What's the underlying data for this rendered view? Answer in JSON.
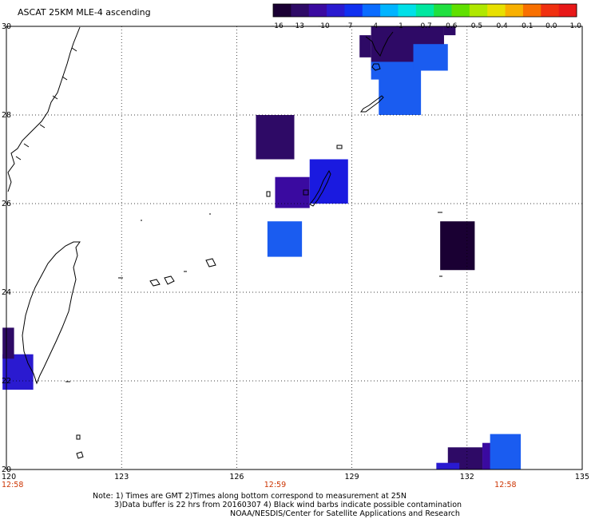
{
  "title": "ASCAT 25KM MLE-4 ascending",
  "colorbar": {
    "labels": [
      "-16",
      "-13",
      "-10",
      "-7",
      "-4",
      "-1",
      "-0.7",
      "-0.6",
      "-0.5",
      "-0.4",
      "-0.1",
      "0.0",
      "1.0"
    ],
    "colors": [
      "#1a0033",
      "#2e0a66",
      "#3a0aa0",
      "#2a1ad0",
      "#1030f0",
      "#0a6cff",
      "#00b4ff",
      "#00e0e8",
      "#00e8a0",
      "#20e040",
      "#60e000",
      "#b0e800",
      "#e8e000",
      "#f8b000",
      "#f87000",
      "#f03010",
      "#e81818"
    ]
  },
  "axes": {
    "lon_labels": [
      "120",
      "123",
      "126",
      "129",
      "132",
      "135"
    ],
    "lat_labels": [
      "20",
      "22",
      "24",
      "26",
      "28",
      "30"
    ],
    "lon_range": [
      120,
      135
    ],
    "lat_range": [
      20,
      30
    ],
    "grid": "dotted"
  },
  "time_labels": [
    {
      "text": "12:58",
      "lon": 120
    },
    {
      "text": "12:59",
      "lon": 127
    },
    {
      "text": "12:58",
      "lon": 133
    }
  ],
  "swaths": [
    {
      "lon": [
        129.2,
        129.5
      ],
      "lat": [
        29.3,
        29.8
      ],
      "color": "#2e0a66"
    },
    {
      "lon": [
        129.5,
        131.4
      ],
      "lat": [
        29.0,
        30.0
      ],
      "color": "#2e0a66"
    },
    {
      "lon": [
        131.4,
        131.7
      ],
      "lat": [
        29.8,
        30.0
      ],
      "color": "#2e0a66"
    },
    {
      "lon": [
        130.6,
        131.5
      ],
      "lat": [
        29.0,
        29.6
      ],
      "color": "#1a5cf0"
    },
    {
      "lon": [
        129.5,
        130.6
      ],
      "lat": [
        28.8,
        29.2
      ],
      "color": "#1a5cf0"
    },
    {
      "lon": [
        129.7,
        130.8
      ],
      "lat": [
        28.0,
        29.0
      ],
      "color": "#1a5cf0"
    },
    {
      "lon": [
        126.5,
        127.5
      ],
      "lat": [
        27.0,
        28.0
      ],
      "color": "#2e0a66"
    },
    {
      "lon": [
        127.0,
        127.9
      ],
      "lat": [
        25.9,
        26.6
      ],
      "color": "#3a0aa0"
    },
    {
      "lon": [
        127.9,
        128.9
      ],
      "lat": [
        26.0,
        27.0
      ],
      "color": "#1a1ae0"
    },
    {
      "lon": [
        126.8,
        127.7
      ],
      "lat": [
        24.8,
        25.6
      ],
      "color": "#1a5cf0"
    },
    {
      "lon": [
        131.3,
        132.2
      ],
      "lat": [
        24.5,
        25.6
      ],
      "color": "#1a0033"
    },
    {
      "lon": [
        119.9,
        120.7
      ],
      "lat": [
        21.8,
        22.6
      ],
      "color": "#2a1ad0"
    },
    {
      "lon": [
        119.9,
        120.2
      ],
      "lat": [
        22.5,
        23.2
      ],
      "color": "#2e0a66"
    },
    {
      "lon": [
        131.5,
        132.4
      ],
      "lat": [
        20.0,
        20.5
      ],
      "color": "#2e0a66"
    },
    {
      "lon": [
        132.4,
        133.0
      ],
      "lat": [
        20.0,
        20.6
      ],
      "color": "#3a0aa0"
    },
    {
      "lon": [
        132.6,
        133.4
      ],
      "lat": [
        20.0,
        20.8
      ],
      "color": "#1a5cf0"
    },
    {
      "lon": [
        131.2,
        131.8
      ],
      "lat": [
        20.0,
        20.15
      ],
      "color": "#2a1ad0"
    }
  ],
  "notes": [
    "Note: 1) Times are GMT 2)Times along bottom correspond to measurement at 25N",
    "3)Data buffer is 22 hrs from 20160307 4) Black wind barbs indicate possible contamination",
    "NOAA/NESDIS/Center for Satellite Applications and Research"
  ]
}
